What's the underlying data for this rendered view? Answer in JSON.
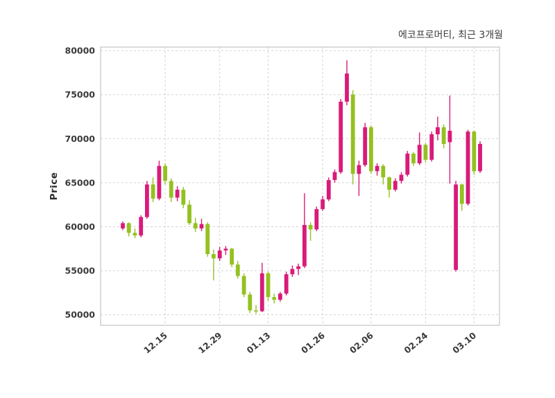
{
  "header": {
    "title": "에코프로머티, 최근 3개월"
  },
  "chart_data": {
    "type": "candlestick",
    "title": "에코프로머티, 최근 3개월",
    "xlabel": "",
    "ylabel": "Price",
    "ylim": [
      48800,
      80400
    ],
    "yticks": [
      50000,
      55000,
      60000,
      65000,
      70000,
      75000,
      80000
    ],
    "xticks": [
      {
        "index": 7,
        "label": "12.15"
      },
      {
        "index": 16,
        "label": "12.29"
      },
      {
        "index": 24,
        "label": "01.13"
      },
      {
        "index": 33,
        "label": "01.26"
      },
      {
        "index": 41,
        "label": "02.06"
      },
      {
        "index": 50,
        "label": "02.24"
      },
      {
        "index": 58,
        "label": "03.10"
      }
    ],
    "grid": "dashed",
    "legend": "none",
    "candle_format": "[open, high, low, close]",
    "colors": {
      "up": "#d81b7a",
      "down": "#94c120",
      "grid": "#d3d3d3",
      "axis_text": "#3a3a3a",
      "background": "#ffffff"
    },
    "candles": [
      [
        59800,
        60600,
        59600,
        60400
      ],
      [
        60400,
        60500,
        58900,
        59300
      ],
      [
        59300,
        59800,
        58700,
        59000
      ],
      [
        59000,
        61300,
        58800,
        61100
      ],
      [
        61100,
        65200,
        60900,
        64800
      ],
      [
        64800,
        65600,
        62800,
        63200
      ],
      [
        63200,
        67500,
        63000,
        66900
      ],
      [
        66900,
        67200,
        64800,
        65200
      ],
      [
        65200,
        65500,
        62800,
        63300
      ],
      [
        63300,
        64600,
        62900,
        64200
      ],
      [
        64200,
        64500,
        62100,
        62500
      ],
      [
        62500,
        63000,
        60200,
        60400
      ],
      [
        60400,
        61000,
        59400,
        59800
      ],
      [
        59800,
        60900,
        59500,
        60300
      ],
      [
        60300,
        60500,
        56600,
        56900
      ],
      [
        56900,
        57400,
        53900,
        56400
      ],
      [
        56400,
        57700,
        56100,
        57300
      ],
      [
        57300,
        57800,
        56800,
        57500
      ],
      [
        57500,
        57600,
        55400,
        55700
      ],
      [
        55700,
        56100,
        54100,
        54400
      ],
      [
        54400,
        54700,
        52000,
        52300
      ],
      [
        52300,
        52600,
        50200,
        50500
      ],
      [
        50500,
        51100,
        50100,
        50400
      ],
      [
        50400,
        55900,
        50300,
        54700
      ],
      [
        54700,
        54900,
        51600,
        52000
      ],
      [
        52000,
        52400,
        51300,
        51700
      ],
      [
        51700,
        52600,
        51500,
        52400
      ],
      [
        52400,
        54900,
        52200,
        54600
      ],
      [
        54600,
        55600,
        54300,
        55200
      ],
      [
        55200,
        55800,
        54500,
        55500
      ],
      [
        55500,
        63800,
        55300,
        60200
      ],
      [
        60200,
        60500,
        58400,
        59700
      ],
      [
        59700,
        62300,
        59500,
        62000
      ],
      [
        62000,
        63500,
        61800,
        63100
      ],
      [
        63100,
        65600,
        62900,
        65300
      ],
      [
        65300,
        66500,
        65000,
        66200
      ],
      [
        66200,
        74500,
        66000,
        74200
      ],
      [
        74200,
        78900,
        73800,
        77400
      ],
      [
        75000,
        75500,
        64800,
        66000
      ],
      [
        66000,
        67500,
        63500,
        67000
      ],
      [
        67000,
        71800,
        66800,
        71300
      ],
      [
        71300,
        71500,
        66000,
        66300
      ],
      [
        66300,
        67200,
        65800,
        66900
      ],
      [
        66900,
        67100,
        64800,
        65600
      ],
      [
        65600,
        65700,
        63300,
        64200
      ],
      [
        64200,
        65500,
        64000,
        65200
      ],
      [
        65200,
        66200,
        64900,
        65900
      ],
      [
        65900,
        68600,
        65700,
        68300
      ],
      [
        68300,
        68500,
        66900,
        67200
      ],
      [
        67200,
        70700,
        67000,
        69300
      ],
      [
        69300,
        69500,
        67300,
        67600
      ],
      [
        67600,
        70800,
        67400,
        70500
      ],
      [
        70500,
        72500,
        69800,
        71300
      ],
      [
        71300,
        71600,
        68900,
        69400
      ],
      [
        69600,
        74900,
        64900,
        70900
      ],
      [
        55100,
        65200,
        54900,
        64800
      ],
      [
        64800,
        64900,
        61800,
        62600
      ],
      [
        62600,
        71000,
        62400,
        70800
      ],
      [
        70800,
        70900,
        65900,
        66300
      ],
      [
        66300,
        69700,
        66100,
        69400
      ]
    ]
  }
}
